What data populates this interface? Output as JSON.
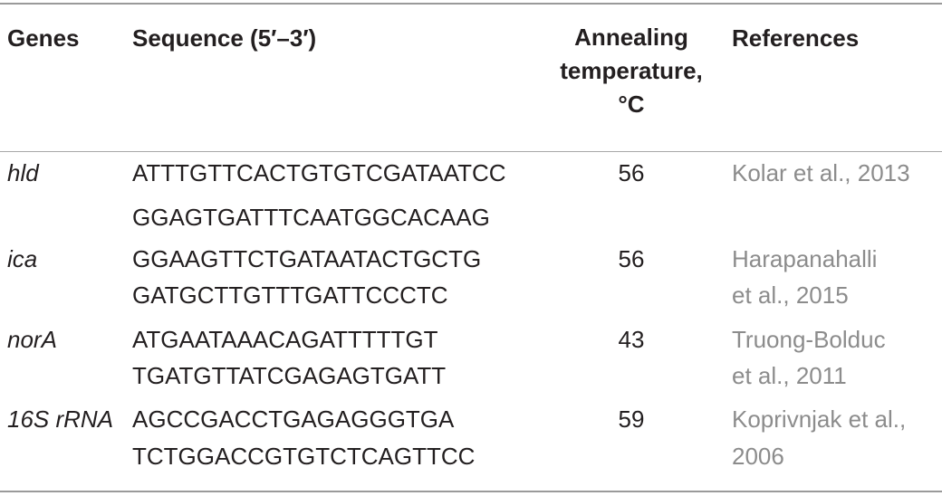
{
  "header": {
    "genes": "Genes",
    "sequence": "Sequence (5′–3′)",
    "annealing_line1": "Annealing",
    "annealing_line2": "temperature,",
    "annealing_line3": "°C",
    "references": "References"
  },
  "rows": [
    {
      "gene": "hld",
      "seq1": "ATTTGTTCACTGTGTCGATAATCC",
      "seq2": "GGAGTGATTTCAATGGCACAAG",
      "temp": "56",
      "ref1": "Kolar et al., 2013",
      "ref2": ""
    },
    {
      "gene": "ica",
      "seq1": "GGAAGTTCTGATAATACTGCTG",
      "seq2": "GATGCTTGTTTGATTCCCTC",
      "temp": "56",
      "ref1": "Harapanahalli",
      "ref2": "et al., 2015"
    },
    {
      "gene": "norA",
      "seq1": "ATGAATAAACAGATTTTTGT",
      "seq2": "TGATGTTATCGAGAGTGATT",
      "temp": "43",
      "ref1": "Truong-Bolduc",
      "ref2": "et al., 2011"
    },
    {
      "gene": "16S rRNA",
      "seq1": "AGCCGACCTGAGAGGGTGA",
      "seq2": "TCTGGACCGTGTCTCAGTTCC",
      "temp": "59",
      "ref1": "Koprivnjak et al.,",
      "ref2": "2006"
    }
  ]
}
